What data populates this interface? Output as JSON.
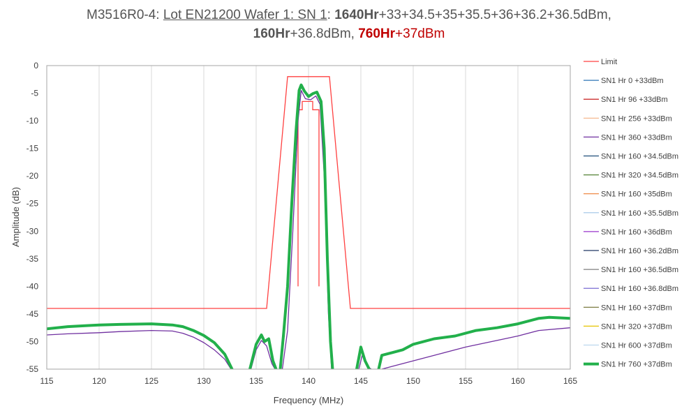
{
  "title": {
    "line1_prefix": "M3516R0-4: ",
    "line1_lot": "Lot EN21200 Wafer 1: SN 1",
    "line1_colon": ": ",
    "line1_hours": "1640Hr",
    "line1_powers": "+33+34.5+35+35.5+36+36.2+36.5dBm,",
    "line2_hours_a": "160Hr",
    "line2_power_a": "+36.8dBm, ",
    "line2_hours_b": "760Hr",
    "line2_power_b": "+37dBm"
  },
  "colors": {
    "limit": "#ff4040",
    "highlight": "#22b04b",
    "grid": "#d9d9d9",
    "title_red": "#c00000"
  },
  "chart_data": {
    "type": "line",
    "xlabel": "Frequency (MHz)",
    "ylabel": "Amplitude (dB)",
    "xlim": [
      115,
      165
    ],
    "ylim": [
      -55,
      0
    ],
    "xticks": [
      115,
      120,
      125,
      130,
      135,
      140,
      145,
      150,
      155,
      160,
      165
    ],
    "yticks": [
      0,
      -5,
      -10,
      -15,
      -20,
      -25,
      -30,
      -35,
      -40,
      -45,
      -50,
      -55
    ],
    "grid": "vertical",
    "legend_position": "right",
    "limit_mask": {
      "name": "Limit",
      "color": "#ff4040",
      "outer": [
        [
          115,
          -44
        ],
        [
          136,
          -44
        ],
        [
          138,
          -2
        ],
        [
          142,
          -2
        ],
        [
          144,
          -44
        ],
        [
          165,
          -44
        ]
      ],
      "inner": [
        [
          139,
          -40
        ],
        [
          139,
          -8
        ],
        [
          139.4,
          -8
        ],
        [
          139.4,
          -6.5
        ],
        [
          140.4,
          -6.5
        ],
        [
          140.4,
          -8
        ],
        [
          141,
          -8
        ],
        [
          141,
          -40
        ]
      ]
    },
    "legend": [
      {
        "name": "Limit",
        "color": "#ff4040",
        "width": 1.2
      },
      {
        "name": "SN1 Hr 0 +33dBm",
        "color": "#2e75b6",
        "width": 1.2
      },
      {
        "name": "SN1 Hr 96 +33dBm",
        "color": "#c00000",
        "width": 1.2
      },
      {
        "name": "SN1 Hr 256 +33dBm",
        "color": "#f4b183",
        "width": 1.2
      },
      {
        "name": "SN1 Hr 360 +33dBm",
        "color": "#7030a0",
        "width": 1.2
      },
      {
        "name": "SN1 Hr 160 +34.5dBm",
        "color": "#1f4e79",
        "width": 1.2
      },
      {
        "name": "SN1 Hr 320 +34.5dBm",
        "color": "#548235",
        "width": 1.2
      },
      {
        "name": "SN1 Hr 160 +35dBm",
        "color": "#ed7d31",
        "width": 1.2
      },
      {
        "name": "SN1 Hr 160 +35.5dBm",
        "color": "#9dc3e6",
        "width": 1.2
      },
      {
        "name": "SN1 Hr 160 +36dBm",
        "color": "#9933cc",
        "width": 1.2
      },
      {
        "name": "SN1 Hr 160 +36.2dBm",
        "color": "#203864",
        "width": 1.2
      },
      {
        "name": "SN1 Hr 160 +36.5dBm",
        "color": "#7f7f7f",
        "width": 1.2
      },
      {
        "name": "SN1 Hr 160 +36.8dBm",
        "color": "#6a5acd",
        "width": 1.2
      },
      {
        "name": "SN1 Hr 160 +37dBm",
        "color": "#6b6b2b",
        "width": 1.2
      },
      {
        "name": "SN1 Hr 320 +37dBm",
        "color": "#e6c300",
        "width": 1.2
      },
      {
        "name": "SN1 Hr 600 +37dBm",
        "color": "#bdd7ee",
        "width": 1.2
      },
      {
        "name": "SN1 Hr 760 +37dBm",
        "color": "#22b04b",
        "width": 4
      }
    ],
    "series": [
      {
        "name": "SN1 Hr 360 +33dBm",
        "color": "#7030a0",
        "width": 1.3,
        "segments": [
          [
            [
              115,
              -48.8
            ],
            [
              117,
              -48.6
            ],
            [
              120,
              -48.4
            ],
            [
              122,
              -48.2
            ],
            [
              125,
              -48.0
            ],
            [
              127,
              -48.1
            ],
            [
              128,
              -48.5
            ],
            [
              129,
              -49.2
            ],
            [
              130,
              -50.2
            ],
            [
              131,
              -51.5
            ],
            [
              132,
              -53.2
            ],
            [
              132.6,
              -55
            ]
          ],
          [
            [
              134.5,
              -55
            ],
            [
              135,
              -51.5
            ],
            [
              135.5,
              -49.8
            ],
            [
              136,
              -50.8
            ],
            [
              136.5,
              -54
            ],
            [
              136.8,
              -55
            ]
          ],
          [
            [
              137.5,
              -55
            ],
            [
              138,
              -48
            ],
            [
              138.5,
              -30
            ],
            [
              139,
              -10
            ],
            [
              139.3,
              -4.5
            ],
            [
              139.7,
              -6
            ],
            [
              140.2,
              -6.2
            ],
            [
              140.7,
              -5.5
            ],
            [
              141.1,
              -7
            ],
            [
              141.5,
              -20
            ],
            [
              141.9,
              -45
            ],
            [
              142.2,
              -55
            ]
          ],
          [
            [
              144.8,
              -55
            ],
            [
              145.2,
              -52
            ],
            [
              145.6,
              -54.5
            ],
            [
              146,
              -55
            ]
          ],
          [
            [
              147,
              -55
            ],
            [
              148,
              -54.5
            ],
            [
              150,
              -53.5
            ],
            [
              152,
              -52.5
            ],
            [
              155,
              -51
            ],
            [
              158,
              -49.8
            ],
            [
              160,
              -49
            ],
            [
              162,
              -48
            ],
            [
              165,
              -47.5
            ]
          ]
        ]
      },
      {
        "name": "SN1 Hr 760 +37dBm",
        "color": "#22b04b",
        "width": 4,
        "segments": [
          [
            [
              115,
              -47.7
            ],
            [
              117,
              -47.3
            ],
            [
              119,
              -47.1
            ],
            [
              120,
              -47.0
            ],
            [
              122,
              -46.9
            ],
            [
              125,
              -46.8
            ],
            [
              127,
              -47.0
            ],
            [
              128,
              -47.3
            ],
            [
              129,
              -48.0
            ],
            [
              130,
              -48.9
            ],
            [
              131,
              -50.2
            ],
            [
              132,
              -52.3
            ],
            [
              132.7,
              -55
            ]
          ],
          [
            [
              134.4,
              -55
            ],
            [
              135,
              -50.5
            ],
            [
              135.5,
              -48.8
            ],
            [
              135.8,
              -50
            ],
            [
              136.2,
              -49.5
            ],
            [
              136.6,
              -53.5
            ],
            [
              136.9,
              -55
            ]
          ],
          [
            [
              137.3,
              -55
            ],
            [
              137.6,
              -49
            ],
            [
              138,
              -40
            ],
            [
              138.4,
              -25
            ],
            [
              138.8,
              -12
            ],
            [
              139.1,
              -4.5
            ],
            [
              139.3,
              -3.5
            ],
            [
              139.6,
              -4.6
            ],
            [
              140,
              -5.6
            ],
            [
              140.4,
              -5.1
            ],
            [
              140.8,
              -4.8
            ],
            [
              141.2,
              -6.5
            ],
            [
              141.5,
              -15
            ],
            [
              141.8,
              -35
            ],
            [
              142.1,
              -50
            ],
            [
              142.3,
              -55
            ]
          ],
          [
            [
              144.6,
              -55
            ],
            [
              145.0,
              -51
            ],
            [
              145.4,
              -53.5
            ],
            [
              145.8,
              -55
            ]
          ],
          [
            [
              146.7,
              -55
            ],
            [
              147,
              -52.5
            ],
            [
              148,
              -52
            ],
            [
              149,
              -51.5
            ],
            [
              150,
              -50.5
            ],
            [
              152,
              -49.5
            ],
            [
              154,
              -49
            ],
            [
              156,
              -48
            ],
            [
              158,
              -47.5
            ],
            [
              160,
              -46.8
            ],
            [
              162,
              -45.8
            ],
            [
              163,
              -45.6
            ],
            [
              165,
              -45.8
            ]
          ]
        ]
      }
    ]
  }
}
